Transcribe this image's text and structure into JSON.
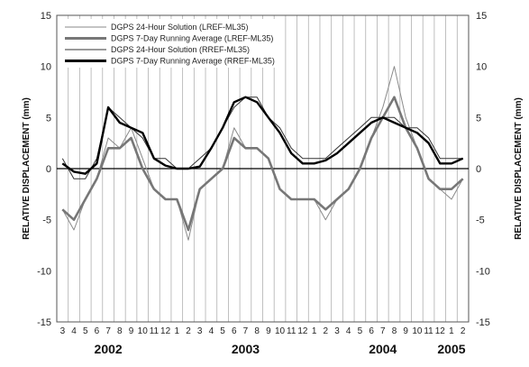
{
  "chart_data": {
    "type": "line",
    "ylabel": "RELATIVE DISPLACEMENT (mm)",
    "ylim": [
      -15,
      15
    ],
    "yticks": [
      -15,
      -10,
      -5,
      0,
      5,
      10,
      15
    ],
    "x_month_range": [
      "2002-03",
      "2005-02"
    ],
    "grid": "vertical lines at month boundaries",
    "legend_position": "top-left",
    "month_labels": [
      "3",
      "4",
      "5",
      "6",
      "7",
      "8",
      "9",
      "10",
      "11",
      "12",
      "1",
      "2",
      "3",
      "4",
      "5",
      "6",
      "7",
      "8",
      "9",
      "10",
      "11",
      "12",
      "1",
      "2",
      "3",
      "4",
      "5",
      "6",
      "7",
      "8",
      "9",
      "10",
      "11",
      "12",
      "1",
      "2"
    ],
    "year_labels": [
      {
        "label": "2002",
        "month": "2002-07"
      },
      {
        "label": "2003",
        "month": "2003-07"
      },
      {
        "label": "2004",
        "month": "2004-07"
      },
      {
        "label": "2005",
        "month": "2005-01"
      }
    ],
    "series": [
      {
        "name": "DGPS 24-Hour Solution (LREF-ML35)",
        "color": "#8a8a8a",
        "style": "thin",
        "month": [
          "2002-03",
          "2002-04",
          "2002-05",
          "2002-06",
          "2002-07",
          "2002-08",
          "2002-09",
          "2002-10",
          "2002-11",
          "2002-12",
          "2003-01",
          "2003-02",
          "2003-03",
          "2003-04",
          "2003-05",
          "2003-06",
          "2003-07",
          "2003-08",
          "2003-09",
          "2003-10",
          "2003-11",
          "2003-12",
          "2004-01",
          "2004-02",
          "2004-03",
          "2004-04",
          "2004-05",
          "2004-06",
          "2004-07",
          "2004-08",
          "2004-09",
          "2004-10",
          "2004-11",
          "2004-12",
          "2005-01",
          "2005-02"
        ],
        "values": [
          -4,
          -6,
          -3,
          -1,
          3,
          2,
          4,
          1,
          -2,
          -3,
          -3,
          -7,
          -2,
          -1,
          0,
          4,
          2,
          2,
          1,
          -2,
          -3,
          -3,
          -3,
          -5,
          -3,
          -2,
          0,
          3,
          6,
          10,
          5,
          2,
          -1,
          -2,
          -3,
          -1
        ]
      },
      {
        "name": "DGPS 7-Day Running Average (LREF-ML35)",
        "color": "#777777",
        "style": "thick",
        "month": [
          "2002-03",
          "2002-04",
          "2002-05",
          "2002-06",
          "2002-07",
          "2002-08",
          "2002-09",
          "2002-10",
          "2002-11",
          "2002-12",
          "2003-01",
          "2003-02",
          "2003-03",
          "2003-04",
          "2003-05",
          "2003-06",
          "2003-07",
          "2003-08",
          "2003-09",
          "2003-10",
          "2003-11",
          "2003-12",
          "2004-01",
          "2004-02",
          "2004-03",
          "2004-04",
          "2004-05",
          "2004-06",
          "2004-07",
          "2004-08",
          "2004-09",
          "2004-10",
          "2004-11",
          "2004-12",
          "2005-01",
          "2005-02"
        ],
        "values": [
          -4,
          -5,
          -3,
          -1,
          2,
          2,
          3,
          0,
          -2,
          -3,
          -3,
          -6,
          -2,
          -1,
          0,
          3,
          2,
          2,
          1,
          -2,
          -3,
          -3,
          -3,
          -4,
          -3,
          -2,
          0,
          3,
          5,
          7,
          4,
          2,
          -1,
          -2,
          -2,
          -1
        ]
      },
      {
        "name": "DGPS 24-Hour Solution (RREF-ML35)",
        "color": "#333333",
        "style": "thin",
        "month": [
          "2002-03",
          "2002-04",
          "2002-05",
          "2002-06",
          "2002-07",
          "2002-08",
          "2002-09",
          "2002-10",
          "2002-11",
          "2002-12",
          "2003-01",
          "2003-02",
          "2003-03",
          "2003-04",
          "2003-05",
          "2003-06",
          "2003-07",
          "2003-08",
          "2003-09",
          "2003-10",
          "2003-11",
          "2003-12",
          "2004-01",
          "2004-02",
          "2004-03",
          "2004-04",
          "2004-05",
          "2004-06",
          "2004-07",
          "2004-08",
          "2004-09",
          "2004-10",
          "2004-11",
          "2004-12",
          "2005-01",
          "2005-02"
        ],
        "values": [
          1,
          -1,
          -1,
          1,
          6,
          5,
          4,
          3,
          1,
          1,
          0,
          0,
          1,
          2,
          4,
          6,
          7,
          7,
          5,
          4,
          2,
          1,
          1,
          1,
          2,
          3,
          4,
          5,
          5,
          5,
          4,
          4,
          3,
          1,
          1,
          1
        ]
      },
      {
        "name": "DGPS 7-Day Running Average (RREF-ML35)",
        "color": "#000000",
        "style": "thick",
        "month": [
          "2002-03",
          "2002-04",
          "2002-05",
          "2002-06",
          "2002-07",
          "2002-08",
          "2002-09",
          "2002-10",
          "2002-11",
          "2002-12",
          "2003-01",
          "2003-02",
          "2003-03",
          "2003-04",
          "2003-05",
          "2003-06",
          "2003-07",
          "2003-08",
          "2003-09",
          "2003-10",
          "2003-11",
          "2003-12",
          "2004-01",
          "2004-02",
          "2004-03",
          "2004-04",
          "2004-05",
          "2004-06",
          "2004-07",
          "2004-08",
          "2004-09",
          "2004-10",
          "2004-11",
          "2004-12",
          "2005-01",
          "2005-02"
        ],
        "values": [
          0.5,
          -0.3,
          -0.5,
          0.5,
          6,
          4.5,
          4,
          3.5,
          1,
          0.3,
          0,
          0,
          0.2,
          2,
          4,
          6.5,
          7,
          6.5,
          5,
          3.5,
          1.5,
          0.5,
          0.5,
          0.8,
          1.5,
          2.5,
          3.5,
          4.5,
          5,
          4.5,
          4,
          3.5,
          2.5,
          0.5,
          0.5,
          1
        ]
      }
    ]
  }
}
